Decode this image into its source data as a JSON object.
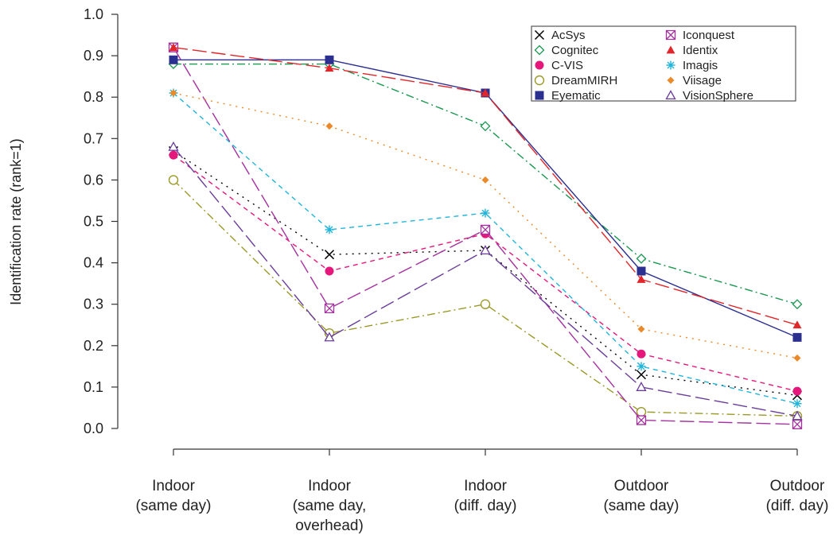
{
  "chart_data": {
    "type": "line",
    "ylabel": "Identification rate (rank=1)",
    "categories": [
      "Indoor\n(same day)",
      "Indoor\n(same day,\noverhead)",
      "Indoor\n(diff. day)",
      "Outdoor\n(same day)",
      "Outdoor\n(diff. day)"
    ],
    "ylim": [
      0,
      1
    ],
    "yticks": [
      {
        "value": 0,
        "label": "0.0"
      },
      0.1,
      0.2,
      0.3,
      0.4,
      0.5,
      0.6,
      0.7,
      0.8,
      0.9,
      {
        "value": 1,
        "label": "1.0"
      }
    ],
    "grid": false,
    "legend": "upper right",
    "series": [
      {
        "name": "AcSys",
        "color": "#000000",
        "marker": "x",
        "dash": "dotted",
        "values": [
          0.67,
          0.42,
          0.43,
          0.13,
          0.08
        ]
      },
      {
        "name": "Cognitec",
        "color": "#1a9850",
        "marker": "diamond-open",
        "dash": "dashdot",
        "values": [
          0.88,
          0.88,
          0.73,
          0.41,
          0.3
        ]
      },
      {
        "name": "C-VIS",
        "color": "#e6177a",
        "marker": "circle-filled",
        "dash": "dashed",
        "values": [
          0.66,
          0.38,
          0.47,
          0.18,
          0.09
        ]
      },
      {
        "name": "DreamMIRH",
        "color": "#9a9a2a",
        "marker": "circle-open",
        "dash": "dashdot",
        "values": [
          0.6,
          0.23,
          0.3,
          0.04,
          0.03
        ]
      },
      {
        "name": "Eyematic",
        "color": "#2b2f8f",
        "marker": "square-filled",
        "dash": "solid",
        "values": [
          0.89,
          0.89,
          0.81,
          0.38,
          0.22
        ]
      },
      {
        "name": "Iconquest",
        "color": "#a3319e",
        "marker": "box-x",
        "dash": "longdash",
        "values": [
          0.92,
          0.29,
          0.48,
          0.02,
          0.01
        ]
      },
      {
        "name": "Identix",
        "color": "#e0262a",
        "marker": "triangle-filled",
        "dash": "longdash",
        "values": [
          0.92,
          0.87,
          0.81,
          0.36,
          0.25
        ]
      },
      {
        "name": "Imagis",
        "color": "#22b5d9",
        "marker": "star",
        "dash": "dashed",
        "values": [
          0.81,
          0.48,
          0.52,
          0.15,
          0.06
        ]
      },
      {
        "name": "Viisage",
        "color": "#ea8a2a",
        "marker": "diamond-filled",
        "dash": "dotted",
        "values": [
          0.81,
          0.73,
          0.6,
          0.24,
          0.17
        ]
      },
      {
        "name": "VisionSphere",
        "color": "#6a3d9a",
        "marker": "triangle-open",
        "dash": "longdash",
        "values": [
          0.68,
          0.22,
          0.43,
          0.1,
          0.03
        ]
      }
    ]
  }
}
